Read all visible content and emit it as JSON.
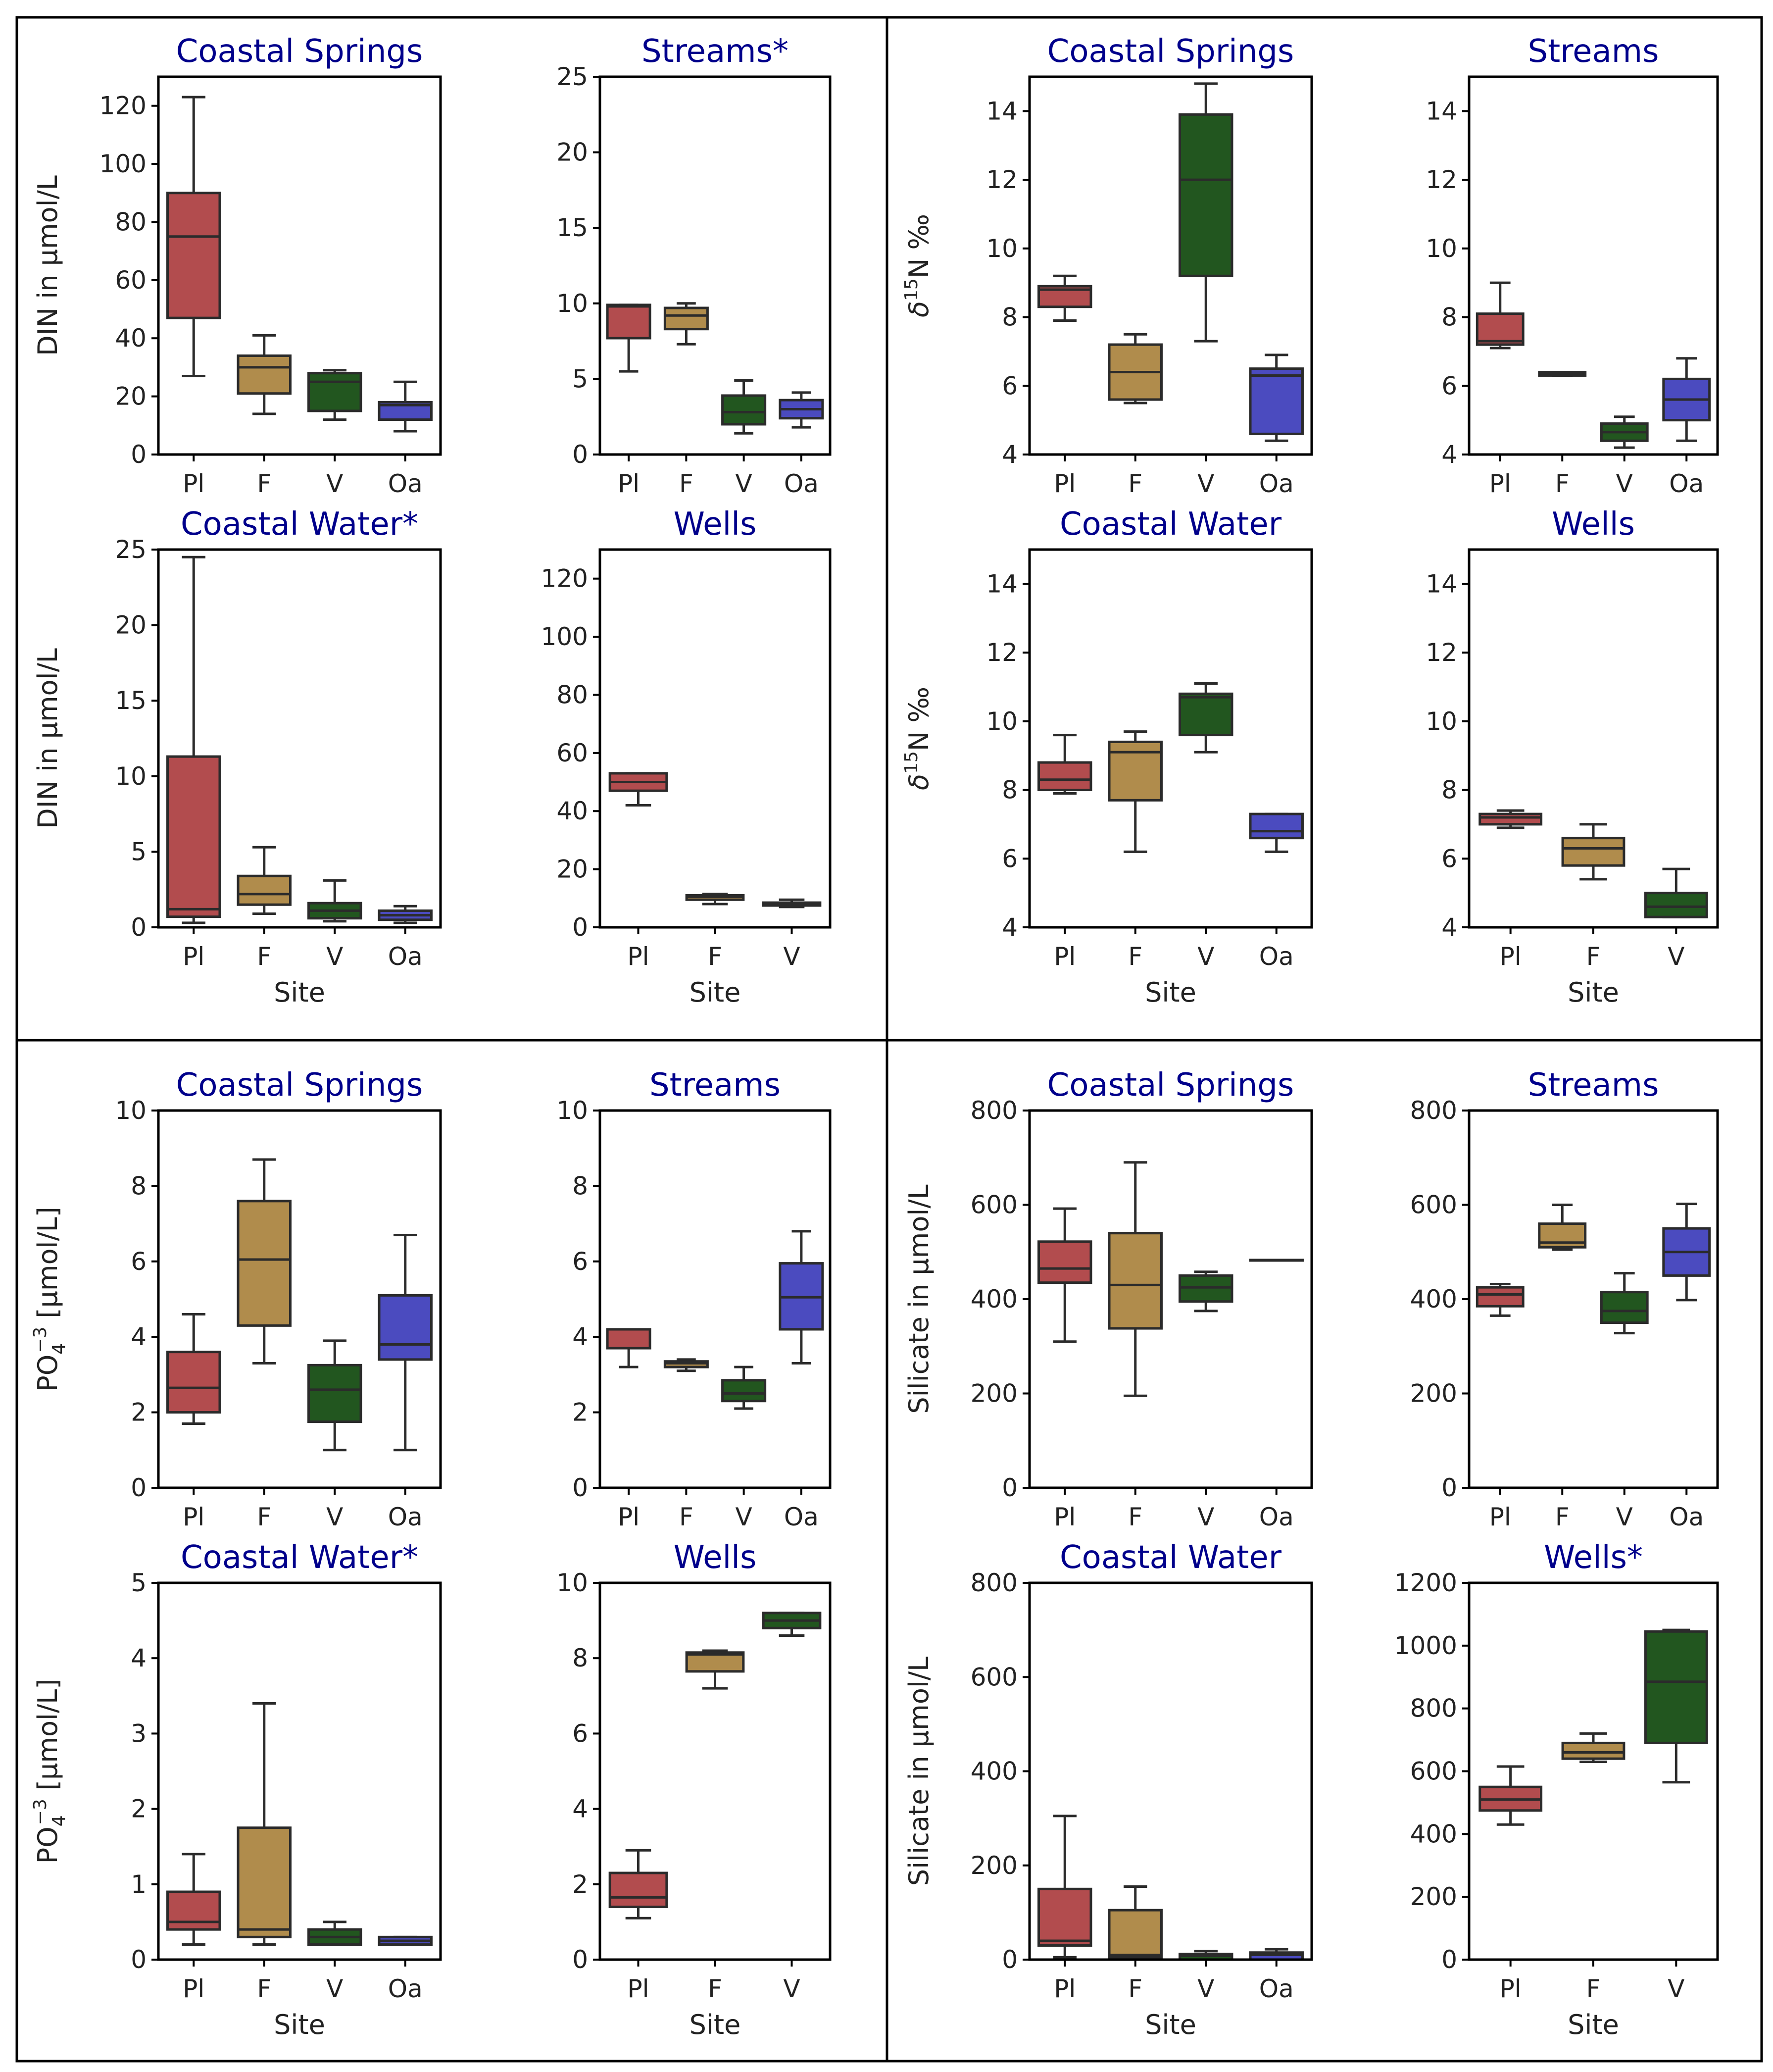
{
  "colors": {
    "Pl": "#b24c4e",
    "F": "#b08c4c",
    "V": "#22561f",
    "Oa": "#4b4bbf",
    "title": "#00008b"
  },
  "labels": {
    "site": "Site",
    "din": "DIN in μmol/L",
    "d15n": "δ15N ‰",
    "po4": "PO4−3  [μmol/L]",
    "silicate": "Silicate in μmol/L"
  },
  "chart_data": [
    {
      "type": "box",
      "panel": "DIN",
      "title": "Coastal Springs",
      "ylabel": "DIN in μmol/L",
      "xlabel": "",
      "ylim": [
        0,
        130
      ],
      "yticks": [
        0,
        20,
        40,
        60,
        80,
        100,
        120
      ],
      "categories": [
        "Pl",
        "F",
        "V",
        "Oa"
      ],
      "boxes": [
        [
          27,
          47,
          75,
          90,
          123
        ],
        [
          14,
          21,
          30,
          34,
          41
        ],
        [
          12,
          15,
          25,
          28,
          29
        ],
        [
          8,
          12,
          17,
          18,
          25
        ]
      ]
    },
    {
      "type": "box",
      "panel": "DIN",
      "title": "Streams*",
      "ylabel": "",
      "xlabel": "",
      "ylim": [
        0,
        25
      ],
      "yticks": [
        0,
        5,
        10,
        15,
        20,
        25
      ],
      "categories": [
        "Pl",
        "F",
        "V",
        "Oa"
      ],
      "boxes": [
        [
          5.5,
          7.7,
          9.8,
          9.9,
          9.9
        ],
        [
          7.3,
          8.3,
          9.2,
          9.7,
          10
        ],
        [
          1.4,
          2,
          2.8,
          3.9,
          4.9
        ],
        [
          1.8,
          2.4,
          3,
          3.6,
          4.1
        ]
      ]
    },
    {
      "type": "box",
      "panel": "DIN",
      "title": "Coastal Water*",
      "ylabel": "DIN in μmol/L",
      "xlabel": "Site",
      "ylim": [
        0,
        25
      ],
      "yticks": [
        0,
        5,
        10,
        15,
        20,
        25
      ],
      "categories": [
        "Pl",
        "F",
        "V",
        "Oa"
      ],
      "boxes": [
        [
          0.3,
          0.7,
          1.2,
          11.3,
          24.5
        ],
        [
          0.9,
          1.5,
          2.2,
          3.4,
          5.3
        ],
        [
          0.4,
          0.6,
          1.1,
          1.6,
          3.1
        ],
        [
          0.3,
          0.5,
          0.8,
          1.1,
          1.4
        ]
      ]
    },
    {
      "type": "box",
      "panel": "DIN",
      "title": "Wells",
      "ylabel": "",
      "xlabel": "Site",
      "ylim": [
        0,
        130
      ],
      "yticks": [
        0,
        20,
        40,
        60,
        80,
        100,
        120
      ],
      "categories": [
        "Pl",
        "F",
        "V"
      ],
      "boxes": [
        [
          42,
          47,
          50,
          53,
          53
        ],
        [
          8,
          9.5,
          10.5,
          11,
          11.5
        ],
        [
          7,
          7.5,
          8,
          8.5,
          9.5
        ]
      ]
    },
    {
      "type": "box",
      "panel": "d15N",
      "title": "Coastal Springs",
      "ylabel": "δ15N ‰",
      "xlabel": "",
      "ylim": [
        4,
        15
      ],
      "yticks": [
        4,
        6,
        8,
        10,
        12,
        14
      ],
      "categories": [
        "Pl",
        "F",
        "V",
        "Oa"
      ],
      "boxes": [
        [
          7.9,
          8.3,
          8.8,
          8.9,
          9.2
        ],
        [
          5.5,
          5.6,
          6.4,
          7.2,
          7.5
        ],
        [
          7.3,
          9.2,
          12,
          13.9,
          14.8
        ],
        [
          4.4,
          4.6,
          6.3,
          6.5,
          6.9
        ]
      ]
    },
    {
      "type": "box",
      "panel": "d15N",
      "title": "Streams",
      "ylabel": "",
      "xlabel": "",
      "ylim": [
        4,
        15
      ],
      "yticks": [
        4,
        6,
        8,
        10,
        12,
        14
      ],
      "categories": [
        "Pl",
        "F",
        "V",
        "Oa"
      ],
      "boxes": [
        [
          7.1,
          7.2,
          7.3,
          8.1,
          9
        ],
        [
          6.3,
          6.3,
          6.35,
          6.4,
          6.4
        ],
        [
          4.2,
          4.4,
          4.65,
          4.9,
          5.1
        ],
        [
          4.4,
          5,
          5.6,
          6.2,
          6.8
        ]
      ]
    },
    {
      "type": "box",
      "panel": "d15N",
      "title": "Coastal Water",
      "ylabel": "δ15N ‰",
      "xlabel": "Site",
      "ylim": [
        4,
        15
      ],
      "yticks": [
        4,
        6,
        8,
        10,
        12,
        14
      ],
      "categories": [
        "Pl",
        "F",
        "V",
        "Oa"
      ],
      "boxes": [
        [
          7.9,
          8,
          8.3,
          8.8,
          9.6
        ],
        [
          6.2,
          7.7,
          9.1,
          9.4,
          9.7
        ],
        [
          9.1,
          9.6,
          10.7,
          10.8,
          11.1
        ],
        [
          6.2,
          6.6,
          6.8,
          7.3,
          7.3
        ]
      ]
    },
    {
      "type": "box",
      "panel": "d15N",
      "title": "Wells",
      "ylabel": "",
      "xlabel": "Site",
      "ylim": [
        4,
        15
      ],
      "yticks": [
        4,
        6,
        8,
        10,
        12,
        14
      ],
      "categories": [
        "Pl",
        "F",
        "V"
      ],
      "boxes": [
        [
          6.9,
          7,
          7.2,
          7.3,
          7.4
        ],
        [
          5.4,
          5.8,
          6.3,
          6.6,
          7
        ],
        [
          4.3,
          4.3,
          4.6,
          5,
          5.7
        ]
      ]
    },
    {
      "type": "box",
      "panel": "PO4",
      "title": "Coastal Springs",
      "ylabel": "PO4−3  [μmol/L]",
      "xlabel": "",
      "ylim": [
        0,
        10
      ],
      "yticks": [
        0,
        2,
        4,
        6,
        8,
        10
      ],
      "categories": [
        "Pl",
        "F",
        "V",
        "Oa"
      ],
      "boxes": [
        [
          1.7,
          2,
          2.65,
          3.6,
          4.6
        ],
        [
          3.3,
          4.3,
          6.05,
          7.6,
          8.7
        ],
        [
          1,
          1.75,
          2.6,
          3.25,
          3.9
        ],
        [
          1,
          3.4,
          3.8,
          5.1,
          6.7
        ]
      ]
    },
    {
      "type": "box",
      "panel": "PO4",
      "title": "Streams",
      "ylabel": "",
      "xlabel": "",
      "ylim": [
        0,
        10
      ],
      "yticks": [
        0,
        2,
        4,
        6,
        8,
        10
      ],
      "categories": [
        "Pl",
        "F",
        "V",
        "Oa"
      ],
      "boxes": [
        [
          3.2,
          3.7,
          4.2,
          4.2,
          4.2
        ],
        [
          3.1,
          3.2,
          3.3,
          3.35,
          3.4
        ],
        [
          2.1,
          2.3,
          2.5,
          2.85,
          3.2
        ],
        [
          3.3,
          4.2,
          5.05,
          5.95,
          6.8
        ]
      ]
    },
    {
      "type": "box",
      "panel": "PO4",
      "title": "Coastal Water*",
      "ylabel": "PO4−3  [μmol/L]",
      "xlabel": "Site",
      "ylim": [
        0,
        5
      ],
      "yticks": [
        0,
        1,
        2,
        3,
        4,
        5
      ],
      "categories": [
        "Pl",
        "F",
        "V",
        "Oa"
      ],
      "boxes": [
        [
          0.2,
          0.4,
          0.5,
          0.9,
          1.4
        ],
        [
          0.2,
          0.3,
          0.4,
          1.75,
          3.4
        ],
        [
          0.2,
          0.2,
          0.3,
          0.4,
          0.5
        ],
        [
          0.2,
          0.2,
          0.25,
          0.3,
          0.3
        ]
      ]
    },
    {
      "type": "box",
      "panel": "PO4",
      "title": "Wells",
      "ylabel": "",
      "xlabel": "Site",
      "ylim": [
        0,
        10
      ],
      "yticks": [
        0,
        2,
        4,
        6,
        8,
        10
      ],
      "categories": [
        "Pl",
        "F",
        "V"
      ],
      "boxes": [
        [
          1.1,
          1.4,
          1.65,
          2.3,
          2.9
        ],
        [
          7.2,
          7.65,
          8.1,
          8.15,
          8.2
        ],
        [
          8.6,
          8.8,
          9,
          9.2,
          9.2
        ]
      ]
    },
    {
      "type": "box",
      "panel": "Silicate",
      "title": "Coastal Springs",
      "ylabel": "Silicate in μmol/L",
      "xlabel": "",
      "ylim": [
        0,
        800
      ],
      "yticks": [
        0,
        200,
        400,
        600,
        800
      ],
      "categories": [
        "Pl",
        "F",
        "V",
        "Oa"
      ],
      "boxes": [
        [
          310,
          435,
          465,
          522,
          592
        ],
        [
          195,
          338,
          430,
          540,
          690
        ],
        [
          375,
          395,
          425,
          450,
          458
        ],
        [
          483,
          483,
          483,
          483,
          483
        ]
      ]
    },
    {
      "type": "box",
      "panel": "Silicate",
      "title": "Streams",
      "ylabel": "",
      "xlabel": "",
      "ylim": [
        0,
        800
      ],
      "yticks": [
        0,
        200,
        400,
        600,
        800
      ],
      "categories": [
        "Pl",
        "F",
        "V",
        "Oa"
      ],
      "boxes": [
        [
          365,
          385,
          410,
          425,
          432
        ],
        [
          505,
          510,
          520,
          560,
          600
        ],
        [
          328,
          350,
          375,
          415,
          455
        ],
        [
          398,
          450,
          500,
          550,
          602
        ]
      ]
    },
    {
      "type": "box",
      "panel": "Silicate",
      "title": "Coastal Water",
      "ylabel": "Silicate in μmol/L",
      "xlabel": "Site",
      "ylim": [
        0,
        800
      ],
      "yticks": [
        0,
        200,
        400,
        600,
        800
      ],
      "categories": [
        "Pl",
        "F",
        "V",
        "Oa"
      ],
      "boxes": [
        [
          5,
          30,
          40,
          150,
          305
        ],
        [
          0,
          5,
          10,
          105,
          155
        ],
        [
          0,
          0,
          8,
          12,
          18
        ],
        [
          0,
          0,
          10,
          15,
          22
        ]
      ]
    },
    {
      "type": "box",
      "panel": "Silicate",
      "title": "Wells*",
      "ylabel": "",
      "xlabel": "Site",
      "ylim": [
        0,
        1200
      ],
      "yticks": [
        0,
        200,
        400,
        600,
        800,
        1000,
        1200
      ],
      "categories": [
        "Pl",
        "F",
        "V"
      ],
      "boxes": [
        [
          430,
          475,
          510,
          550,
          615
        ],
        [
          630,
          640,
          660,
          690,
          720
        ],
        [
          565,
          690,
          885,
          1045,
          1050
        ]
      ]
    }
  ]
}
